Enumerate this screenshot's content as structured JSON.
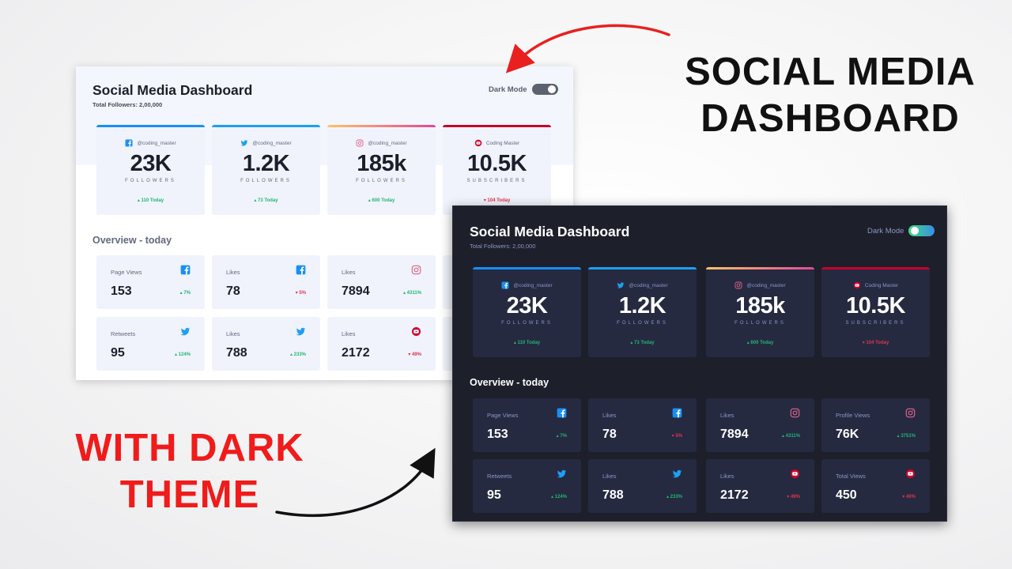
{
  "headline_right": {
    "line1": "SOCIAL MEDIA",
    "line2": "DASHBOARD"
  },
  "headline_left": {
    "line1": "WITH DARK",
    "line2": "THEME"
  },
  "dashboard": {
    "title": "Social Media Dashboard",
    "total_followers": "Total Followers: 2,00,000",
    "mode_label": "Dark Mode",
    "overview_title": "Overview - today",
    "cards": [
      {
        "platform": "facebook",
        "icon": "facebook-icon",
        "accent": "#198ff5",
        "handle": "@coding_master",
        "count": "23K",
        "unit": "FOLLOWERS",
        "today": "110 Today",
        "dir": "up"
      },
      {
        "platform": "twitter",
        "icon": "twitter-icon",
        "accent": "#1ca0f2",
        "handle": "@coding_master",
        "count": "1.2K",
        "unit": "FOLLOWERS",
        "today": "73 Today",
        "dir": "up"
      },
      {
        "platform": "instagram",
        "icon": "instagram-icon",
        "accent": "#df4996",
        "handle": "@coding_master",
        "count": "185k",
        "unit": "FOLLOWERS",
        "today": "600 Today",
        "dir": "up"
      },
      {
        "platform": "youtube",
        "icon": "youtube-icon",
        "accent": "#c4032a",
        "handle": "Coding Master",
        "count": "10.5K",
        "unit": "SUBSCRIBERS",
        "today": "104 Today",
        "dir": "down"
      }
    ],
    "overview": [
      {
        "label": "Page Views",
        "icon": "facebook-icon",
        "value": "153",
        "pct": "7%",
        "dir": "up"
      },
      {
        "label": "Likes",
        "icon": "facebook-icon",
        "value": "78",
        "pct": "5%",
        "dir": "down"
      },
      {
        "label": "Likes",
        "icon": "instagram-icon",
        "value": "7894",
        "pct": "4311%",
        "dir": "up"
      },
      {
        "label": "Profile Views",
        "icon": "instagram-icon",
        "value": "76K",
        "pct": "3751%",
        "dir": "up"
      },
      {
        "label": "Retweets",
        "icon": "twitter-icon",
        "value": "95",
        "pct": "124%",
        "dir": "up"
      },
      {
        "label": "Likes",
        "icon": "twitter-icon",
        "value": "788",
        "pct": "233%",
        "dir": "up"
      },
      {
        "label": "Likes",
        "icon": "youtube-icon",
        "value": "2172",
        "pct": "49%",
        "dir": "down"
      },
      {
        "label": "Total Views",
        "icon": "youtube-icon",
        "value": "450",
        "pct": "40%",
        "dir": "down"
      }
    ]
  },
  "colors": {
    "up": "#22b573",
    "down": "#e0334a",
    "facebook": "#198ff5",
    "twitter": "#1ca0f2",
    "instagram": "#df4996",
    "youtube": "#c4032a",
    "headline_red": "#f01b1b",
    "dark_bg": "#1d1f2b",
    "dark_card": "#252a41"
  }
}
